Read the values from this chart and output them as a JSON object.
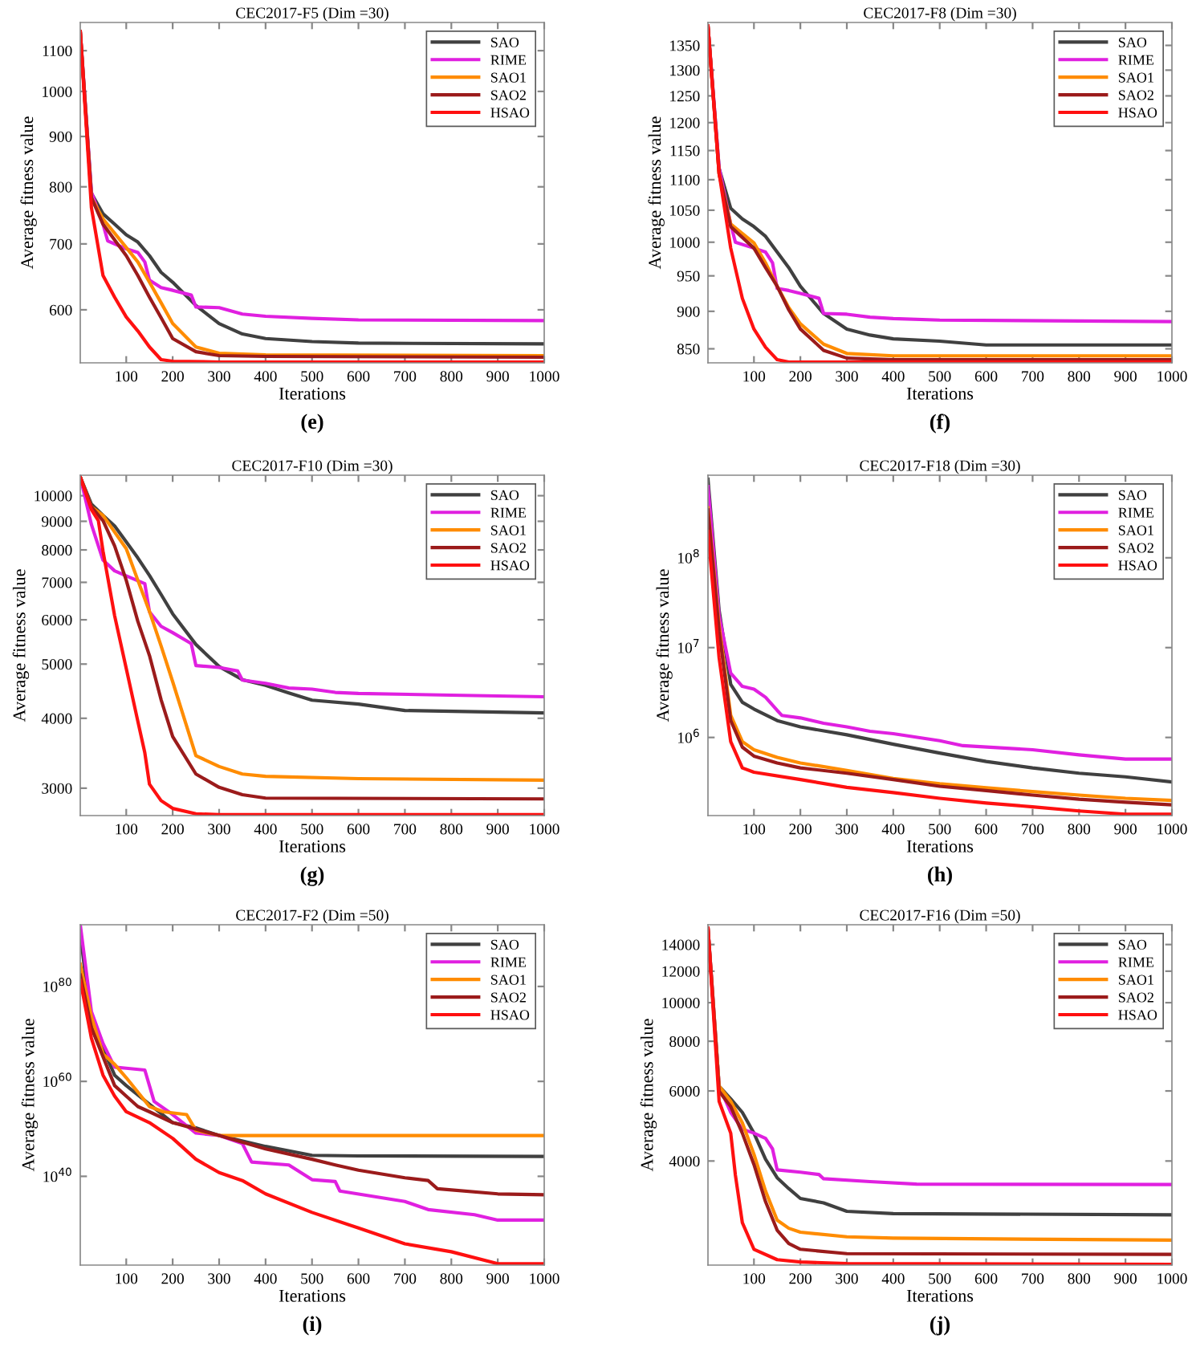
{
  "chart_data": [
    {
      "type": "line",
      "title": "CEC2017-F5 (Dim =30)",
      "xlabel": "Iterations",
      "ylabel": "Average fitness value",
      "annotations": [
        "(e)"
      ],
      "log": "y",
      "legend": "top right",
      "xlim": [
        1,
        1000
      ],
      "xticks": [
        100,
        200,
        300,
        400,
        500,
        600,
        700,
        800,
        900,
        1000
      ],
      "ylim": [
        530,
        1175
      ],
      "yticks": [
        600,
        700,
        800,
        900,
        1000,
        1100
      ],
      "series": [
        {
          "name": "SAO",
          "color": "#404040",
          "x": [
            1,
            25,
            50,
            75,
            100,
            125,
            150,
            175,
            200,
            250,
            300,
            350,
            400,
            500,
            600,
            1000
          ],
          "values": [
            1150,
            788,
            751,
            733,
            715,
            703,
            681,
            655,
            640,
            606,
            581,
            567,
            561,
            557,
            555,
            554
          ]
        },
        {
          "name": "RIME",
          "color": "#e020e0",
          "x": [
            1,
            25,
            50,
            60,
            100,
            125,
            140,
            150,
            175,
            200,
            240,
            250,
            300,
            350,
            400,
            500,
            600,
            1000
          ],
          "values": [
            1150,
            790,
            733,
            705,
            692,
            686,
            671,
            643,
            632,
            628,
            621,
            604,
            603,
            594,
            591,
            588,
            586,
            585
          ]
        },
        {
          "name": "SAO1",
          "color": "#ff8c00",
          "x": [
            1,
            25,
            50,
            100,
            125,
            150,
            175,
            200,
            250,
            300,
            400,
            1000
          ],
          "values": [
            1150,
            780,
            742,
            694,
            671,
            640,
            610,
            581,
            550,
            542,
            540,
            539
          ]
        },
        {
          "name": "SAO2",
          "color": "#9b1b1b",
          "x": [
            1,
            25,
            50,
            100,
            125,
            150,
            175,
            200,
            250,
            300,
            400,
            1000
          ],
          "values": [
            1150,
            780,
            733,
            681,
            650,
            618,
            589,
            561,
            544,
            539,
            538,
            537
          ]
        },
        {
          "name": "HSAO",
          "color": "#ff1010",
          "x": [
            1,
            25,
            50,
            75,
            100,
            125,
            150,
            175,
            200,
            300,
            1000
          ],
          "values": [
            1150,
            762,
            650,
            618,
            590,
            571,
            550,
            534,
            532,
            531,
            531
          ]
        }
      ]
    },
    {
      "type": "line",
      "title": "CEC2017-F8 (Dim =30)",
      "xlabel": "Iterations",
      "ylabel": "Average fitness value",
      "annotations": [
        "(f)"
      ],
      "log": "y",
      "legend": "top right",
      "xlim": [
        1,
        1000
      ],
      "xticks": [
        100,
        200,
        300,
        400,
        500,
        600,
        700,
        800,
        900,
        1000
      ],
      "ylim": [
        832,
        1398
      ],
      "yticks": [
        850,
        900,
        950,
        1000,
        1050,
        1100,
        1150,
        1200,
        1250,
        1300,
        1350
      ],
      "series": [
        {
          "name": "SAO",
          "color": "#404040",
          "x": [
            1,
            25,
            50,
            75,
            100,
            125,
            150,
            175,
            200,
            250,
            300,
            350,
            400,
            500,
            600,
            1000
          ],
          "values": [
            1390,
            1119,
            1053,
            1036,
            1024,
            1009,
            985,
            962,
            935,
            897,
            876,
            868,
            863,
            860,
            855,
            855
          ]
        },
        {
          "name": "RIME",
          "color": "#e020e0",
          "x": [
            1,
            25,
            50,
            60,
            100,
            125,
            140,
            150,
            175,
            200,
            240,
            250,
            300,
            350,
            400,
            500,
            1000
          ],
          "values": [
            1390,
            1120,
            1028,
            1000,
            991,
            985,
            969,
            932,
            929,
            925,
            918,
            897,
            896,
            892,
            890,
            888,
            886
          ]
        },
        {
          "name": "SAO1",
          "color": "#ff8c00",
          "x": [
            1,
            25,
            50,
            100,
            125,
            150,
            175,
            200,
            250,
            300,
            400,
            1000
          ],
          "values": [
            1390,
            1110,
            1028,
            999,
            969,
            935,
            905,
            883,
            856,
            844,
            841,
            841
          ]
        },
        {
          "name": "SAO2",
          "color": "#9b1b1b",
          "x": [
            1,
            25,
            50,
            100,
            125,
            150,
            175,
            200,
            250,
            300,
            400,
            1000
          ],
          "values": [
            1390,
            1110,
            1024,
            991,
            962,
            935,
            902,
            876,
            848,
            838,
            836,
            836
          ]
        },
        {
          "name": "HSAO",
          "color": "#ff1010",
          "x": [
            1,
            25,
            50,
            75,
            100,
            125,
            150,
            175,
            1000
          ],
          "values": [
            1390,
            1111,
            991,
            918,
            876,
            852,
            836,
            833,
            833
          ]
        }
      ]
    },
    {
      "type": "line",
      "title": "CEC2017-F10 (Dim =30)",
      "xlabel": "Iterations",
      "ylabel": "Average fitness value",
      "annotations": [
        "(g)"
      ],
      "log": "y",
      "legend": "top right",
      "xlim": [
        1,
        1000
      ],
      "xticks": [
        100,
        200,
        300,
        400,
        500,
        600,
        700,
        800,
        900,
        1000
      ],
      "ylim": [
        2680,
        10880
      ],
      "yticks": [
        3000,
        4000,
        5000,
        6000,
        7000,
        8000,
        9000,
        10000
      ],
      "series": [
        {
          "name": "SAO",
          "color": "#404040",
          "x": [
            1,
            25,
            50,
            75,
            100,
            125,
            150,
            175,
            200,
            250,
            300,
            350,
            400,
            450,
            500,
            600,
            700,
            1000
          ],
          "values": [
            10800,
            9660,
            9220,
            8830,
            8270,
            7740,
            7200,
            6660,
            6150,
            5420,
            4950,
            4690,
            4580,
            4440,
            4310,
            4240,
            4130,
            4090
          ]
        },
        {
          "name": "RIME",
          "color": "#e020e0",
          "x": [
            1,
            25,
            50,
            75,
            100,
            140,
            150,
            175,
            200,
            240,
            250,
            300,
            340,
            350,
            400,
            450,
            500,
            550,
            600,
            800,
            1000
          ],
          "values": [
            10800,
            8880,
            7670,
            7340,
            7190,
            6960,
            6200,
            5840,
            5690,
            5440,
            4970,
            4930,
            4860,
            4680,
            4620,
            4530,
            4510,
            4450,
            4430,
            4400,
            4370
          ]
        },
        {
          "name": "SAO1",
          "color": "#ff8c00",
          "x": [
            1,
            25,
            50,
            100,
            125,
            150,
            175,
            200,
            250,
            300,
            350,
            400,
            600,
            1000
          ],
          "values": [
            10800,
            9550,
            9220,
            8040,
            7060,
            6210,
            5390,
            4650,
            3430,
            3280,
            3180,
            3150,
            3120,
            3100
          ]
        },
        {
          "name": "SAO2",
          "color": "#9b1b1b",
          "x": [
            1,
            25,
            50,
            75,
            100,
            125,
            150,
            175,
            200,
            250,
            300,
            350,
            400,
            1000
          ],
          "values": [
            10800,
            9550,
            9020,
            8130,
            7060,
            5960,
            5180,
            4320,
            3710,
            3180,
            3010,
            2920,
            2880,
            2870
          ]
        },
        {
          "name": "HSAO",
          "color": "#ff1010",
          "x": [
            1,
            25,
            40,
            50,
            75,
            100,
            125,
            140,
            150,
            175,
            200,
            250,
            300,
            1000
          ],
          "values": [
            10800,
            9440,
            9020,
            7960,
            6100,
            4910,
            3950,
            3470,
            3050,
            2850,
            2760,
            2700,
            2690,
            2690
          ]
        }
      ]
    },
    {
      "type": "line",
      "title": "CEC2017-F18 (Dim =30)",
      "xlabel": "Iterations",
      "ylabel": "Average fitness value",
      "annotations": [
        "(h)"
      ],
      "log": "y",
      "legend": "top right",
      "xlim": [
        1,
        1000
      ],
      "xticks": [
        100,
        200,
        300,
        400,
        500,
        600,
        700,
        800,
        900,
        1000
      ],
      "ylim": [
        135000,
        830000000
      ],
      "yticks": [
        {
          "value": 1000000,
          "label": "10$^{6}$"
        },
        {
          "value": 10000000,
          "label": "10$^{7}$"
        },
        {
          "value": 100000000,
          "label": "10$^{8}$"
        }
      ],
      "series": [
        {
          "name": "SAO",
          "color": "#404040",
          "x": [
            1,
            25,
            50,
            75,
            100,
            150,
            200,
            300,
            400,
            500,
            600,
            700,
            800,
            900,
            1000
          ],
          "values": [
            750000000.0,
            26000000.0,
            3900000.0,
            2460000.0,
            2070000.0,
            1540000.0,
            1310000.0,
            1070000.0,
            840000.0,
            670000.0,
            540000.0,
            458000.0,
            400000.0,
            364000.0,
            320000.0
          ]
        },
        {
          "name": "RIME",
          "color": "#e020e0",
          "x": [
            1,
            25,
            50,
            75,
            100,
            125,
            150,
            160,
            200,
            250,
            300,
            350,
            400,
            500,
            550,
            700,
            800,
            900,
            1000
          ],
          "values": [
            620000000.0,
            22700000.0,
            5200000.0,
            3700000.0,
            3450000.0,
            2800000.0,
            2000000.0,
            1760000.0,
            1650000.0,
            1440000.0,
            1310000.0,
            1170000.0,
            1100000.0,
            920000.0,
            810000.0,
            730000.0,
            640000.0,
            575000.0,
            575000.0
          ]
        },
        {
          "name": "SAO1",
          "color": "#ff8c00",
          "x": [
            1,
            25,
            50,
            75,
            100,
            150,
            200,
            300,
            400,
            500,
            600,
            700,
            800,
            900,
            1000
          ],
          "values": [
            360000000.0,
            17400000.0,
            1760000.0,
            898000.0,
            730000.0,
            600000.0,
            520000.0,
            430000.0,
            350000.0,
            306000.0,
            275000.0,
            250000.0,
            228000.0,
            210000.0,
            199000.0
          ]
        },
        {
          "name": "SAO2",
          "color": "#9b1b1b",
          "x": [
            1,
            25,
            50,
            75,
            100,
            150,
            200,
            300,
            400,
            500,
            600,
            700,
            800,
            900,
            1000
          ],
          "values": [
            340000000.0,
            15200000.0,
            1540000.0,
            780000.0,
            620000.0,
            520000.0,
            458000.0,
            400000.0,
            340000.0,
            286000.0,
            256000.0,
            228000.0,
            205000.0,
            190000.0,
            178000.0
          ]
        },
        {
          "name": "HSAO",
          "color": "#ff1010",
          "x": [
            1,
            25,
            50,
            75,
            100,
            200,
            300,
            400,
            500,
            600,
            700,
            800,
            900,
            1000
          ],
          "values": [
            196000000.0,
            7700000.0,
            898000.0,
            458000.0,
            410000.0,
            340000.0,
            278000.0,
            243000.0,
            210000.0,
            186000.0,
            169000.0,
            152000.0,
            140000.0,
            140000.0
          ]
        }
      ]
    },
    {
      "type": "line",
      "title": "CEC2017-F2 (Dim =50)",
      "xlabel": "Iterations",
      "ylabel": "Average fitness value",
      "annotations": [
        "(i)"
      ],
      "log": "y",
      "legend": "top right",
      "xlim": [
        1,
        1000
      ],
      "xticks": [
        100,
        200,
        300,
        400,
        500,
        600,
        700,
        800,
        900,
        1000
      ],
      "ylim": [
        2e+21,
        1e+93
      ],
      "yticks": [
        {
          "value": 1e+40,
          "label": "10$^{40}$"
        },
        {
          "value": 1e+60,
          "label": "10$^{60}$"
        },
        {
          "value": 1e+80,
          "label": "10$^{80}$"
        }
      ],
      "series": [
        {
          "name": "SAO",
          "color": "#404040",
          "x": [
            1,
            25,
            50,
            75,
            100,
            150,
            200,
            250,
            300,
            400,
            500,
            600,
            1000
          ],
          "values": [
            2e+91,
            8e+71,
            8e+66,
            2e+61,
            1.3e+59,
            1.6e+55,
            2e+51,
            1.6e+50,
            4e+48,
            2e+46,
            2.7e+44,
            2e+44,
            1.6e+44
          ]
        },
        {
          "name": "RIME",
          "color": "#e020e0",
          "x": [
            1,
            25,
            50,
            75,
            100,
            140,
            160,
            200,
            250,
            300,
            350,
            370,
            450,
            500,
            550,
            560,
            700,
            750,
            850,
            900,
            1000
          ],
          "values": [
            1e+93,
            5e+74,
            1e+68,
            1e+63,
            6e+62,
            2.5e+62,
            6e+55,
            1e+53,
            1.3e+49,
            4e+48,
            8e+46,
            1e+43,
            2.5e+42,
            2e+39,
            8e+38,
            8e+36,
            5e+34,
            1e+33,
            8e+31,
            6e+30,
            6e+30
          ]
        },
        {
          "name": "SAO1",
          "color": "#ff8c00",
          "x": [
            1,
            25,
            50,
            75,
            100,
            150,
            180,
            230,
            250,
            300,
            1000
          ],
          "values": [
            5e+84,
            4e+73,
            6e+65,
            4e+63,
            6e+60,
            5e+54,
            4e+53,
            1e+53,
            5e+49,
            4e+48,
            4e+48
          ]
        },
        {
          "name": "SAO2",
          "color": "#9b1b1b",
          "x": [
            1,
            25,
            50,
            75,
            100,
            125,
            150,
            200,
            300,
            400,
            500,
            550,
            600,
            700,
            750,
            770,
            900,
            1000
          ],
          "values": [
            2.5e+82,
            2e+71,
            1.6e+65,
            1.3e+59,
            8e+56,
            5e+54,
            4e+53,
            2e+51,
            4e+48,
            6e+45,
            4e+43,
            2.5e+42,
            2e+41,
            5e+39,
            1.3e+39,
            2.5e+37,
            2e+36,
            1.3e+36
          ]
        },
        {
          "name": "HSAO",
          "color": "#ff1010",
          "x": [
            1,
            25,
            50,
            75,
            100,
            150,
            200,
            250,
            300,
            350,
            400,
            500,
            600,
            700,
            800,
            900,
            1000
          ],
          "values": [
            2e+81,
            1.3e+69,
            2e+61,
            8e+56,
            4e+53,
            2e+51,
            1e+48,
            4e+43,
            6e+40,
            1.3e+39,
            2e+36,
            2.5e+32,
            1.3e+29,
            6e+25,
            1.3e+24,
            4e+21,
            4e+21
          ]
        }
      ]
    },
    {
      "type": "line",
      "title": "CEC2017-F16 (Dim =50)",
      "xlabel": "Iterations",
      "ylabel": "Average fitness value",
      "annotations": [
        "(j)"
      ],
      "log": "y",
      "legend": "top right",
      "xlim": [
        1,
        1000
      ],
      "xticks": [
        100,
        200,
        300,
        400,
        500,
        600,
        700,
        800,
        900,
        1000
      ],
      "ylim": [
        2190,
        15700
      ],
      "yticks": [
        4000,
        6000,
        8000,
        10000,
        12000,
        14000
      ],
      "series": [
        {
          "name": "SAO",
          "color": "#404040",
          "x": [
            1,
            25,
            50,
            75,
            100,
            125,
            150,
            175,
            200,
            250,
            300,
            400,
            1000
          ],
          "values": [
            15400,
            6170,
            5730,
            5300,
            4700,
            4040,
            3630,
            3410,
            3220,
            3140,
            2990,
            2950,
            2930
          ]
        },
        {
          "name": "RIME",
          "color": "#e020e0",
          "x": [
            1,
            25,
            50,
            75,
            100,
            125,
            140,
            150,
            200,
            240,
            250,
            350,
            450,
            1000
          ],
          "values": [
            15400,
            6170,
            5300,
            4810,
            4700,
            4560,
            4290,
            3800,
            3750,
            3700,
            3610,
            3550,
            3500,
            3490
          ]
        },
        {
          "name": "SAO1",
          "color": "#ff8c00",
          "x": [
            1,
            25,
            50,
            75,
            100,
            125,
            150,
            175,
            200,
            300,
            400,
            1000
          ],
          "values": [
            15400,
            6170,
            5650,
            4990,
            4160,
            3360,
            2840,
            2710,
            2650,
            2580,
            2560,
            2530
          ]
        },
        {
          "name": "SAO2",
          "color": "#9b1b1b",
          "x": [
            1,
            25,
            50,
            75,
            100,
            125,
            150,
            175,
            200,
            300,
            1000
          ],
          "values": [
            15400,
            5990,
            5480,
            4700,
            3920,
            3160,
            2680,
            2480,
            2400,
            2340,
            2330
          ]
        },
        {
          "name": "HSAO",
          "color": "#ff1010",
          "x": [
            1,
            25,
            50,
            60,
            75,
            100,
            150,
            200,
            300,
            1000
          ],
          "values": [
            15400,
            5650,
            4700,
            3690,
            2800,
            2400,
            2260,
            2230,
            2210,
            2200
          ]
        }
      ]
    }
  ]
}
